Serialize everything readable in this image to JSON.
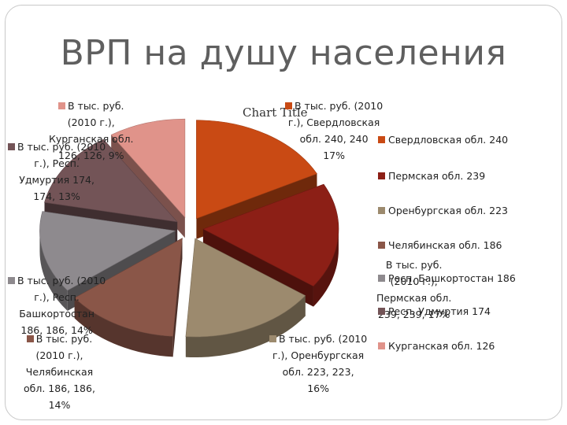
{
  "slide": {
    "title": "ВРП на душу населения"
  },
  "chart_data": {
    "type": "pie",
    "title": "Chart Title",
    "three_d": true,
    "exploded": true,
    "series_name": "В тыс. руб. (2010 г.)",
    "categories": [
      "Свердловская обл.",
      "Пермская обл.",
      "Оренбургская обл.",
      "Челябинская обл.",
      "Респ. Башкортостан",
      "Респ. Удмуртия",
      "Курганская обл."
    ],
    "values": [
      240,
      239,
      223,
      186,
      186,
      174,
      126
    ],
    "percent_labels": [
      "17%",
      "17%",
      "16%",
      "14%",
      "14%",
      "13%",
      "9%"
    ],
    "colors": [
      "#c94a14",
      "#8c1f16",
      "#9c8a6e",
      "#8a5648",
      "#8e8a8e",
      "#735457",
      "#e0938a"
    ],
    "legend_position": "right",
    "legend": [
      {
        "label": "Свердловская обл.",
        "value": "240"
      },
      {
        "label": "Пермская обл.",
        "value": "239"
      },
      {
        "label": "Оренбургская обл.",
        "value": "223"
      },
      {
        "label": "Челябинская обл.",
        "value": "186"
      },
      {
        "label": "Респ. Башкортостан",
        "value": "186"
      },
      {
        "label": "Респ. Удмуртия",
        "value": "174"
      },
      {
        "label": "Курганская обл.",
        "value": "126"
      }
    ],
    "data_labels": [
      {
        "text": "В тыс. руб. (2010\nг.), Свердловская\nобл. 240, 240\n17%"
      },
      {
        "text": "В тыс. руб.\n(2010 г.),\nПермская обл.\n239, 239, 17%"
      },
      {
        "text": "В тыс. руб. (2010\nг.), Оренбургская\nобл. 223, 223,\n16%"
      },
      {
        "text": "В тыс. руб.\n(2010 г.),\nЧелябинская\nобл. 186, 186,\n14%"
      },
      {
        "text": "В тыс. руб. (2010\nг.), Респ.\nБашкортостан\n186, 186, 14%"
      },
      {
        "text": "В тыс. руб. (2010\nг.), Респ.\nУдмуртия 174,\n174, 13%"
      },
      {
        "text": "В тыс. руб.\n(2010 г.),\nКурганская обл.\n126, 126, 9%"
      }
    ]
  }
}
